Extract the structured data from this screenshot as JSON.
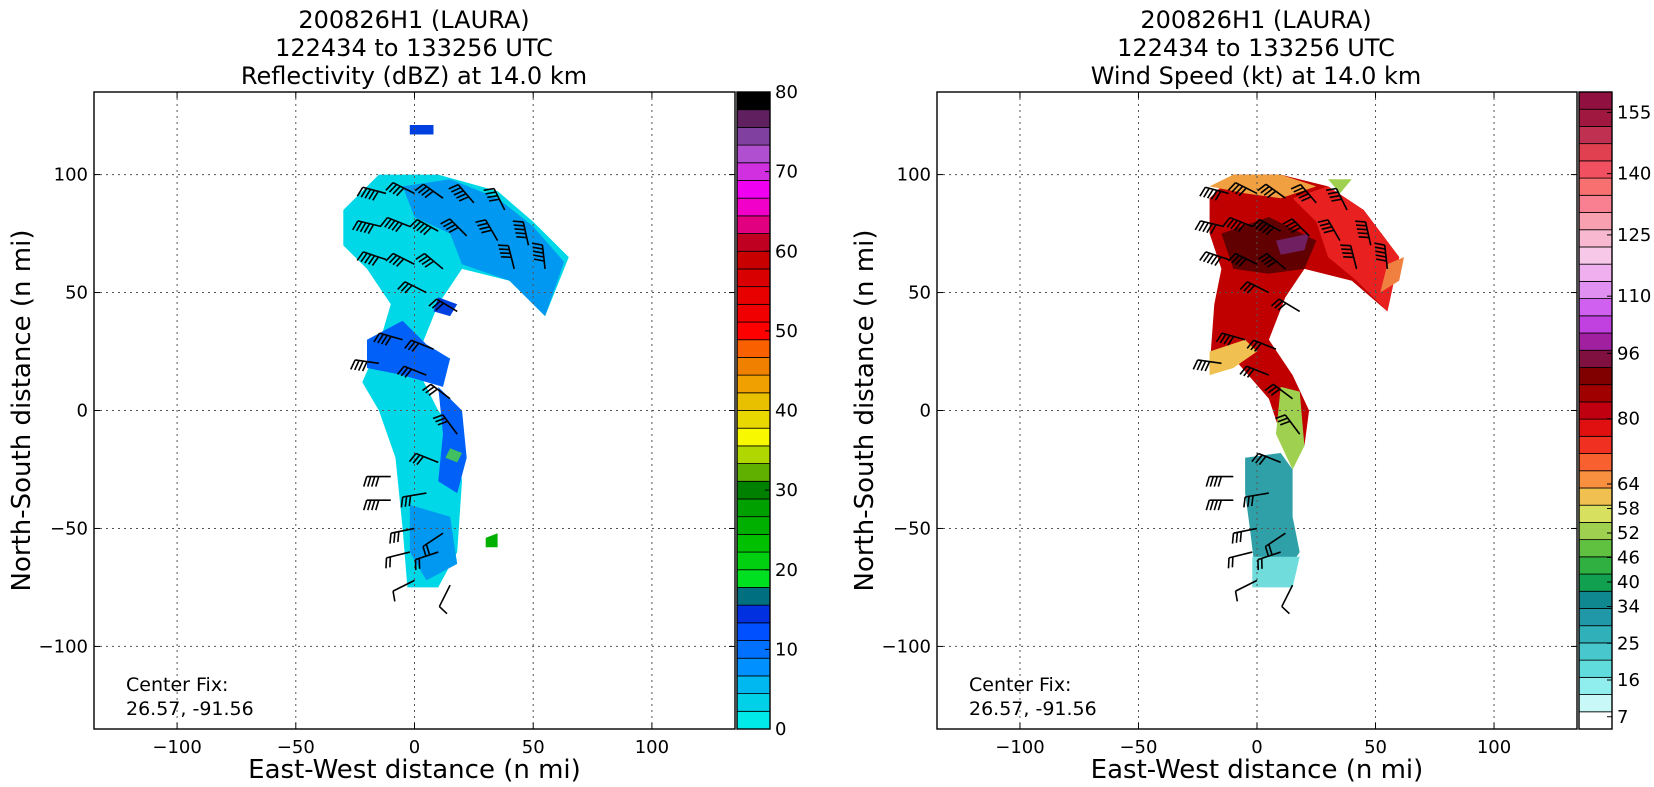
{
  "chart_data": [
    {
      "type": "heatmap",
      "title_lines": [
        "200826H1 (LAURA)",
        "122434 to 133256 UTC",
        "Reflectivity (dBZ) at 14.0 km"
      ],
      "xlabel": "East-West distance (n mi)",
      "ylabel": "North-South distance (n mi)",
      "xlim": [
        -135,
        135
      ],
      "ylim": [
        -135,
        135
      ],
      "xticks": [
        -100,
        -50,
        0,
        50,
        100
      ],
      "yticks": [
        -100,
        -50,
        0,
        50,
        100
      ],
      "xtick_labels": [
        "−100",
        "−50",
        "0",
        "50",
        "100"
      ],
      "ytick_labels": [
        "−100",
        "−50",
        "0",
        "50",
        "100"
      ],
      "grid": true,
      "annotation": {
        "line1": "Center Fix:",
        "line2": "26.57, -91.56"
      },
      "colorbar": {
        "min": 0,
        "max": 80,
        "tick_values": [
          0,
          10,
          20,
          30,
          40,
          50,
          60,
          70,
          80
        ],
        "colors": [
          "#00eaea",
          "#00d0e8",
          "#00b8f0",
          "#0090ff",
          "#0070ff",
          "#0050ff",
          "#0030e0",
          "#007080",
          "#00e020",
          "#00d010",
          "#00c000",
          "#00b000",
          "#00a000",
          "#008000",
          "#60b000",
          "#b0d800",
          "#f8f800",
          "#e8d800",
          "#e8c000",
          "#f0a000",
          "#f08000",
          "#f86000",
          "#ff0000",
          "#f00000",
          "#e80000",
          "#d80000",
          "#c80000",
          "#c00020",
          "#e00080",
          "#f000c8",
          "#f000f0",
          "#d030e0",
          "#b050d0",
          "#8040a0",
          "#602060",
          "#000000"
        ]
      },
      "data_regions": [
        {
          "color": "#00d8e8",
          "points": [
            [
              -30,
              85
            ],
            [
              -15,
              100
            ],
            [
              10,
              100
            ],
            [
              35,
              93
            ],
            [
              50,
              80
            ],
            [
              65,
              65
            ],
            [
              55,
              40
            ],
            [
              40,
              55
            ],
            [
              20,
              60
            ],
            [
              10,
              45
            ],
            [
              0,
              20
            ],
            [
              10,
              0
            ],
            [
              18,
              -10
            ],
            [
              20,
              -30
            ],
            [
              18,
              -60
            ],
            [
              10,
              -75
            ],
            [
              -3,
              -75
            ],
            [
              -5,
              -50
            ],
            [
              -8,
              -20
            ],
            [
              -15,
              0
            ],
            [
              -22,
              12
            ],
            [
              -15,
              28
            ],
            [
              -10,
              45
            ],
            [
              -20,
              60
            ],
            [
              -30,
              70
            ]
          ]
        },
        {
          "color": "#0098f0",
          "points": [
            [
              -5,
              95
            ],
            [
              15,
              98
            ],
            [
              35,
              90
            ],
            [
              50,
              78
            ],
            [
              63,
              63
            ],
            [
              55,
              40
            ],
            [
              40,
              55
            ],
            [
              20,
              62
            ],
            [
              15,
              75
            ],
            [
              0,
              82
            ]
          ]
        },
        {
          "color": "#0060f8",
          "points": [
            [
              -20,
              30
            ],
            [
              -5,
              38
            ],
            [
              5,
              28
            ],
            [
              15,
              22
            ],
            [
              12,
              10
            ],
            [
              -5,
              15
            ],
            [
              -20,
              18
            ]
          ]
        },
        {
          "color": "#0060f8",
          "points": [
            [
              10,
              10
            ],
            [
              20,
              0
            ],
            [
              22,
              -20
            ],
            [
              18,
              -35
            ],
            [
              10,
              -30
            ],
            [
              12,
              -10
            ]
          ]
        },
        {
          "color": "#0098f0",
          "points": [
            [
              -2,
              -40
            ],
            [
              15,
              -45
            ],
            [
              18,
              -65
            ],
            [
              5,
              -72
            ],
            [
              -2,
              -60
            ]
          ]
        },
        {
          "color": "#0040e0",
          "points": [
            [
              -2,
              121
            ],
            [
              8,
              121
            ],
            [
              8,
              117
            ],
            [
              -2,
              117
            ]
          ]
        },
        {
          "color": "#0040e0",
          "points": [
            [
              10,
              48
            ],
            [
              18,
              45
            ],
            [
              15,
              40
            ],
            [
              8,
              42
            ]
          ]
        },
        {
          "color": "#40c060",
          "points": [
            [
              15,
              -16
            ],
            [
              20,
              -18
            ],
            [
              18,
              -22
            ],
            [
              13,
              -20
            ]
          ]
        },
        {
          "color": "#00b000",
          "points": [
            [
              30,
              -54
            ],
            [
              35,
              -52
            ],
            [
              35,
              -58
            ],
            [
              30,
              -58
            ]
          ]
        }
      ]
    },
    {
      "type": "heatmap",
      "title_lines": [
        "200826H1 (LAURA)",
        "122434 to 133256 UTC",
        "Wind Speed (kt) at 14.0 km"
      ],
      "xlabel": "East-West distance (n mi)",
      "ylabel": "North-South distance (n mi)",
      "xlim": [
        -135,
        135
      ],
      "ylim": [
        -135,
        135
      ],
      "xticks": [
        -100,
        -50,
        0,
        50,
        100
      ],
      "yticks": [
        -100,
        -50,
        0,
        50,
        100
      ],
      "xtick_labels": [
        "−100",
        "−50",
        "0",
        "50",
        "100"
      ],
      "ytick_labels": [
        "−100",
        "−50",
        "0",
        "50",
        "100"
      ],
      "grid": true,
      "annotation": {
        "line1": "Center Fix:",
        "line2": "26.57, -91.56"
      },
      "colorbar": {
        "min": 4,
        "max": 160,
        "tick_values": [
          7,
          16,
          25,
          34,
          40,
          46,
          52,
          58,
          64,
          80,
          96,
          110,
          125,
          140,
          155
        ],
        "tick_labels": [
          "7",
          "16",
          "25",
          "34",
          "40",
          "46",
          "52",
          "58",
          "64",
          "80",
          "96",
          "110",
          "125",
          "140",
          "155"
        ],
        "colors": [
          "#ffffff",
          "#c8f8f8",
          "#90eeee",
          "#60dcdc",
          "#48c8cc",
          "#30b0b8",
          "#2098a8",
          "#108890",
          "#10a050",
          "#30b040",
          "#60c040",
          "#a0d050",
          "#d8e060",
          "#f0c050",
          "#f89040",
          "#f86030",
          "#f03020",
          "#e01010",
          "#c00010",
          "#a00000",
          "#800000",
          "#801040",
          "#a020a0",
          "#c040e0",
          "#d060f0",
          "#e090f0",
          "#f0b0f0",
          "#f8c8e8",
          "#f8b8d0",
          "#f8a0b0",
          "#f88090",
          "#f87070",
          "#f05060",
          "#e04050",
          "#c03050",
          "#a01840",
          "#901040"
        ]
      },
      "data_regions": [
        {
          "color": "#c00000",
          "points": [
            [
              -20,
              90
            ],
            [
              -10,
              100
            ],
            [
              10,
              100
            ],
            [
              30,
              95
            ],
            [
              45,
              85
            ],
            [
              60,
              65
            ],
            [
              55,
              42
            ],
            [
              40,
              55
            ],
            [
              20,
              60
            ],
            [
              12,
              48
            ],
            [
              5,
              30
            ],
            [
              15,
              15
            ],
            [
              22,
              0
            ],
            [
              20,
              -15
            ],
            [
              10,
              -10
            ],
            [
              5,
              5
            ],
            [
              -8,
              20
            ],
            [
              -20,
              18
            ],
            [
              -18,
              45
            ],
            [
              -15,
              60
            ],
            [
              -20,
              75
            ]
          ]
        },
        {
          "color": "#e82020",
          "points": [
            [
              15,
              90
            ],
            [
              30,
              95
            ],
            [
              45,
              85
            ],
            [
              60,
              65
            ],
            [
              55,
              42
            ],
            [
              42,
              55
            ],
            [
              30,
              65
            ],
            [
              25,
              80
            ]
          ]
        },
        {
          "color": "#f0a040",
          "points": [
            [
              -20,
              95
            ],
            [
              -10,
              100
            ],
            [
              10,
              100
            ],
            [
              25,
              95
            ],
            [
              10,
              90
            ],
            [
              -5,
              92
            ]
          ]
        },
        {
          "color": "#a0d050",
          "points": [
            [
              30,
              98
            ],
            [
              40,
              98
            ],
            [
              35,
              92
            ]
          ]
        },
        {
          "color": "#f08040",
          "points": [
            [
              55,
              62
            ],
            [
              62,
              65
            ],
            [
              60,
              55
            ],
            [
              52,
              50
            ]
          ]
        },
        {
          "color": "#600000",
          "points": [
            [
              -15,
              75
            ],
            [
              5,
              82
            ],
            [
              25,
              72
            ],
            [
              20,
              60
            ],
            [
              5,
              58
            ],
            [
              -10,
              60
            ]
          ]
        },
        {
          "color": "#702060",
          "points": [
            [
              8,
              72
            ],
            [
              22,
              75
            ],
            [
              20,
              68
            ],
            [
              10,
              66
            ]
          ]
        },
        {
          "color": "#f0c050",
          "points": [
            [
              -20,
              25
            ],
            [
              -5,
              30
            ],
            [
              0,
              25
            ],
            [
              -10,
              18
            ],
            [
              -20,
              15
            ]
          ]
        },
        {
          "color": "#a0d050",
          "points": [
            [
              10,
              10
            ],
            [
              18,
              8
            ],
            [
              20,
              -15
            ],
            [
              15,
              -25
            ],
            [
              8,
              -10
            ]
          ]
        },
        {
          "color": "#30a0a8",
          "points": [
            [
              -5,
              -20
            ],
            [
              10,
              -18
            ],
            [
              15,
              -25
            ],
            [
              15,
              -45
            ],
            [
              18,
              -60
            ],
            [
              10,
              -72
            ],
            [
              0,
              -75
            ],
            [
              -3,
              -50
            ],
            [
              -5,
              -35
            ]
          ]
        },
        {
          "color": "#70dcdc",
          "points": [
            [
              -2,
              -62
            ],
            [
              18,
              -62
            ],
            [
              15,
              -75
            ],
            [
              -2,
              -75
            ]
          ]
        },
        {
          "color": "#ffffff",
          "points": [
            [
              12,
              48
            ],
            [
              18,
              50
            ],
            [
              20,
              40
            ],
            [
              12,
              38
            ]
          ]
        }
      ]
    }
  ],
  "wind_barbs": [
    {
      "x": -12,
      "y": 92,
      "u": 45,
      "v": -12
    },
    {
      "x": 0,
      "y": 92,
      "u": 40,
      "v": -20
    },
    {
      "x": 12,
      "y": 90,
      "u": 35,
      "v": -25
    },
    {
      "x": 25,
      "y": 88,
      "u": 30,
      "v": -35
    },
    {
      "x": 38,
      "y": 85,
      "u": 20,
      "v": -40
    },
    {
      "x": -14,
      "y": 78,
      "u": 50,
      "v": -12
    },
    {
      "x": -2,
      "y": 78,
      "u": 45,
      "v": -18
    },
    {
      "x": 10,
      "y": 76,
      "u": 40,
      "v": -22
    },
    {
      "x": 22,
      "y": 74,
      "u": 30,
      "v": -30
    },
    {
      "x": 35,
      "y": 72,
      "u": 22,
      "v": -38
    },
    {
      "x": 48,
      "y": 70,
      "u": 10,
      "v": -45
    },
    {
      "x": -12,
      "y": 64,
      "u": 45,
      "v": -15
    },
    {
      "x": 0,
      "y": 62,
      "u": 40,
      "v": -20
    },
    {
      "x": 12,
      "y": 60,
      "u": 30,
      "v": -25
    },
    {
      "x": 42,
      "y": 60,
      "u": 10,
      "v": -40
    },
    {
      "x": 55,
      "y": 60,
      "u": 5,
      "v": -45
    },
    {
      "x": 5,
      "y": 50,
      "u": 30,
      "v": -15
    },
    {
      "x": 18,
      "y": 42,
      "u": 25,
      "v": -15
    },
    {
      "x": -5,
      "y": 30,
      "u": 35,
      "v": -10
    },
    {
      "x": 8,
      "y": 26,
      "u": 30,
      "v": -12
    },
    {
      "x": -15,
      "y": 20,
      "u": 35,
      "v": -5
    },
    {
      "x": 5,
      "y": 15,
      "u": 25,
      "v": -10
    },
    {
      "x": 15,
      "y": 5,
      "u": 20,
      "v": -15
    },
    {
      "x": 18,
      "y": -10,
      "u": 15,
      "v": -20
    },
    {
      "x": 10,
      "y": -22,
      "u": 25,
      "v": -10
    },
    {
      "x": -10,
      "y": -28,
      "u": 40,
      "v": 0
    },
    {
      "x": 5,
      "y": -35,
      "u": 30,
      "v": 5
    },
    {
      "x": -10,
      "y": -38,
      "u": 35,
      "v": 0
    },
    {
      "x": 0,
      "y": -50,
      "u": 25,
      "v": 5
    },
    {
      "x": 12,
      "y": -52,
      "u": 15,
      "v": 10
    },
    {
      "x": -2,
      "y": -60,
      "u": 20,
      "v": 5
    },
    {
      "x": 10,
      "y": -60,
      "u": 15,
      "v": 5
    },
    {
      "x": 0,
      "y": -72,
      "u": 10,
      "v": 5
    },
    {
      "x": 15,
      "y": -74,
      "u": 5,
      "v": 10
    }
  ]
}
